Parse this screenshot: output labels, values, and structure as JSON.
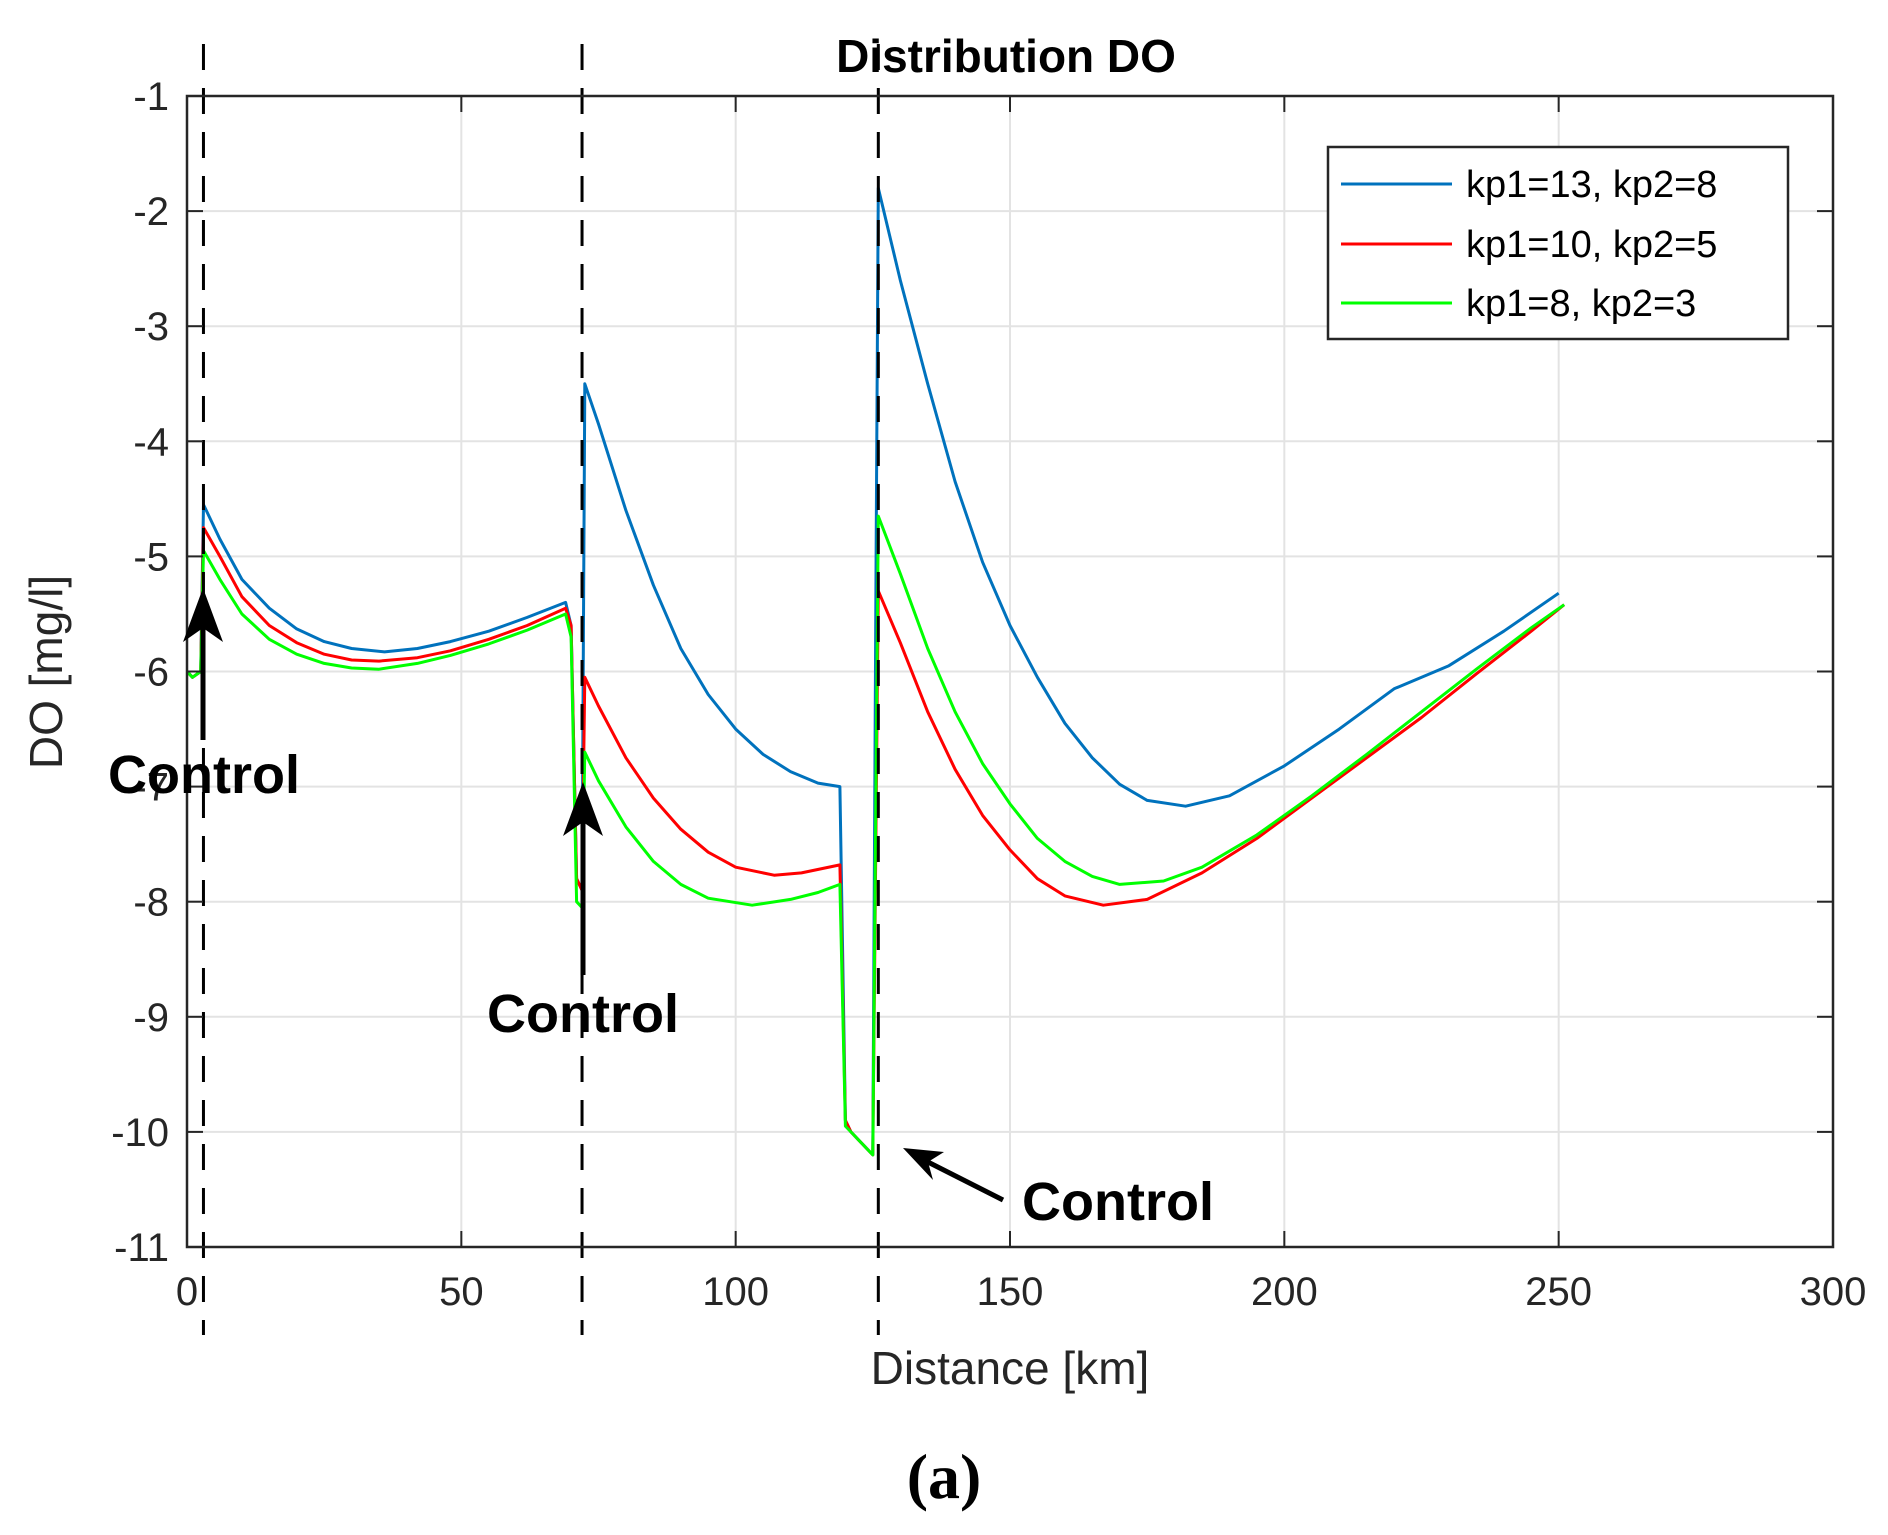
{
  "chart_data": {
    "type": "line",
    "title": "Distribution DO",
    "xlabel": "Distance [km]",
    "ylabel": "DO [mg/l]",
    "xlim": [
      0,
      300
    ],
    "ylim": [
      -11,
      -1
    ],
    "xticks": [
      0,
      50,
      100,
      150,
      200,
      250,
      300
    ],
    "yticks": [
      -1,
      -2,
      -3,
      -4,
      -5,
      -6,
      -7,
      -8,
      -9,
      -10,
      -11
    ],
    "grid": true,
    "legend_position": "top-right",
    "control_points_km": [
      3,
      72,
      126
    ],
    "annotations": [
      "Control",
      "Control",
      "Control"
    ],
    "panel_label": "(a)",
    "series": [
      {
        "name": "kp1=13, kp2=8",
        "color": "#0072BD",
        "points": [
          [
            0,
            -6.0
          ],
          [
            1,
            -6.05
          ],
          [
            2.5,
            -6.0
          ],
          [
            3,
            -4.55
          ],
          [
            6,
            -4.85
          ],
          [
            10,
            -5.2
          ],
          [
            15,
            -5.45
          ],
          [
            20,
            -5.63
          ],
          [
            25,
            -5.74
          ],
          [
            30,
            -5.8
          ],
          [
            36,
            -5.83
          ],
          [
            42,
            -5.8
          ],
          [
            48,
            -5.74
          ],
          [
            55,
            -5.65
          ],
          [
            62,
            -5.53
          ],
          [
            69,
            -5.4
          ],
          [
            70,
            -5.6
          ],
          [
            71,
            -7.8
          ],
          [
            72,
            -7.9
          ],
          [
            72.5,
            -3.5
          ],
          [
            75,
            -3.85
          ],
          [
            80,
            -4.6
          ],
          [
            85,
            -5.25
          ],
          [
            90,
            -5.8
          ],
          [
            95,
            -6.2
          ],
          [
            100,
            -6.5
          ],
          [
            105,
            -6.72
          ],
          [
            110,
            -6.87
          ],
          [
            115,
            -6.97
          ],
          [
            119,
            -7.0
          ],
          [
            120,
            -9.9
          ],
          [
            121,
            -10.0
          ],
          [
            125,
            -10.2
          ],
          [
            125.6,
            -5.0
          ],
          [
            126,
            -1.8
          ],
          [
            130,
            -2.6
          ],
          [
            135,
            -3.5
          ],
          [
            140,
            -4.35
          ],
          [
            145,
            -5.05
          ],
          [
            150,
            -5.6
          ],
          [
            155,
            -6.05
          ],
          [
            160,
            -6.45
          ],
          [
            165,
            -6.75
          ],
          [
            170,
            -6.98
          ],
          [
            175,
            -7.12
          ],
          [
            182,
            -7.17
          ],
          [
            190,
            -7.08
          ],
          [
            200,
            -6.82
          ],
          [
            210,
            -6.5
          ],
          [
            220,
            -6.15
          ],
          [
            230,
            -5.95
          ],
          [
            240,
            -5.65
          ],
          [
            250,
            -5.32
          ]
        ]
      },
      {
        "name": "kp1=10, kp2=5",
        "color": "#FF0000",
        "points": [
          [
            0,
            -6.0
          ],
          [
            1,
            -6.05
          ],
          [
            2.5,
            -6.0
          ],
          [
            3,
            -4.75
          ],
          [
            6,
            -5.0
          ],
          [
            10,
            -5.35
          ],
          [
            15,
            -5.6
          ],
          [
            20,
            -5.75
          ],
          [
            25,
            -5.85
          ],
          [
            30,
            -5.9
          ],
          [
            35,
            -5.91
          ],
          [
            42,
            -5.88
          ],
          [
            48,
            -5.82
          ],
          [
            55,
            -5.72
          ],
          [
            62,
            -5.6
          ],
          [
            69,
            -5.45
          ],
          [
            70,
            -5.6
          ],
          [
            71,
            -7.8
          ],
          [
            72,
            -7.9
          ],
          [
            72.5,
            -6.05
          ],
          [
            75,
            -6.3
          ],
          [
            80,
            -6.75
          ],
          [
            85,
            -7.1
          ],
          [
            90,
            -7.37
          ],
          [
            95,
            -7.57
          ],
          [
            100,
            -7.7
          ],
          [
            107,
            -7.77
          ],
          [
            112,
            -7.75
          ],
          [
            119,
            -7.68
          ],
          [
            120,
            -9.9
          ],
          [
            121,
            -10.0
          ],
          [
            125,
            -10.2
          ],
          [
            126,
            -5.3
          ],
          [
            130,
            -5.75
          ],
          [
            135,
            -6.35
          ],
          [
            140,
            -6.85
          ],
          [
            145,
            -7.25
          ],
          [
            150,
            -7.55
          ],
          [
            155,
            -7.8
          ],
          [
            160,
            -7.95
          ],
          [
            167,
            -8.03
          ],
          [
            175,
            -7.98
          ],
          [
            185,
            -7.75
          ],
          [
            195,
            -7.45
          ],
          [
            205,
            -7.1
          ],
          [
            215,
            -6.75
          ],
          [
            225,
            -6.4
          ],
          [
            235,
            -6.02
          ],
          [
            245,
            -5.65
          ],
          [
            251,
            -5.42
          ]
        ]
      },
      {
        "name": "kp1=8, kp2=3",
        "color": "#00FF00",
        "points": [
          [
            0,
            -6.0
          ],
          [
            1,
            -6.05
          ],
          [
            2.5,
            -6.0
          ],
          [
            3,
            -4.95
          ],
          [
            6,
            -5.2
          ],
          [
            10,
            -5.5
          ],
          [
            15,
            -5.72
          ],
          [
            20,
            -5.85
          ],
          [
            25,
            -5.93
          ],
          [
            30,
            -5.97
          ],
          [
            35,
            -5.98
          ],
          [
            42,
            -5.93
          ],
          [
            48,
            -5.86
          ],
          [
            55,
            -5.76
          ],
          [
            62,
            -5.64
          ],
          [
            69,
            -5.5
          ],
          [
            70,
            -5.7
          ],
          [
            71,
            -8.0
          ],
          [
            72,
            -8.05
          ],
          [
            72.5,
            -6.7
          ],
          [
            75,
            -6.95
          ],
          [
            80,
            -7.35
          ],
          [
            85,
            -7.65
          ],
          [
            90,
            -7.85
          ],
          [
            95,
            -7.97
          ],
          [
            103,
            -8.03
          ],
          [
            110,
            -7.98
          ],
          [
            115,
            -7.92
          ],
          [
            119,
            -7.85
          ],
          [
            120,
            -9.95
          ],
          [
            121,
            -10.0
          ],
          [
            125,
            -10.2
          ],
          [
            126,
            -4.65
          ],
          [
            130,
            -5.15
          ],
          [
            135,
            -5.8
          ],
          [
            140,
            -6.35
          ],
          [
            145,
            -6.8
          ],
          [
            150,
            -7.15
          ],
          [
            155,
            -7.45
          ],
          [
            160,
            -7.65
          ],
          [
            165,
            -7.78
          ],
          [
            170,
            -7.85
          ],
          [
            178,
            -7.82
          ],
          [
            185,
            -7.7
          ],
          [
            195,
            -7.42
          ],
          [
            205,
            -7.08
          ],
          [
            215,
            -6.72
          ],
          [
            225,
            -6.35
          ],
          [
            235,
            -5.98
          ],
          [
            245,
            -5.62
          ],
          [
            251,
            -5.42
          ]
        ]
      }
    ]
  }
}
